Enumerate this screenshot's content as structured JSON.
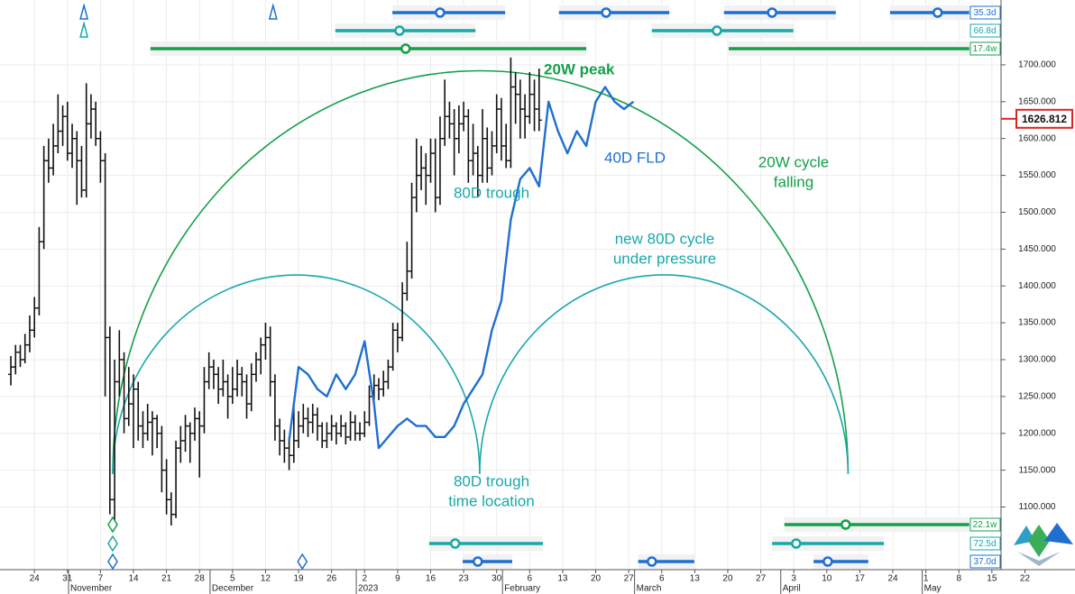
{
  "chart_data": {
    "type": "ohlc",
    "color": "#111111",
    "grid": true,
    "xlim": [
      -7.3,
      214.5
    ],
    "ylim": [
      1015,
      1788
    ],
    "yticks": [
      {
        "value": 1100,
        "label": "1100.000"
      },
      {
        "value": 1150,
        "label": "1150.000"
      },
      {
        "value": 1200,
        "label": "1200.000"
      },
      {
        "value": 1250,
        "label": "1250.000"
      },
      {
        "value": 1300,
        "label": "1300.000"
      },
      {
        "value": 1350,
        "label": "1350.000"
      },
      {
        "value": 1400,
        "label": "1400.000"
      },
      {
        "value": 1450,
        "label": "1450.000"
      },
      {
        "value": 1500,
        "label": "1500.000"
      },
      {
        "value": 1550,
        "label": "1550.000"
      },
      {
        "value": 1600,
        "label": "1600.000"
      },
      {
        "value": 1650,
        "label": "1650.000"
      },
      {
        "value": 1700,
        "label": "1700.000"
      }
    ],
    "xticks": [
      {
        "value": 0,
        "label": "24"
      },
      {
        "value": 7,
        "label": "31"
      },
      {
        "value": 14,
        "label": "7"
      },
      {
        "value": 21,
        "label": "14"
      },
      {
        "value": 28,
        "label": "21"
      },
      {
        "value": 35,
        "label": "28"
      },
      {
        "value": 42,
        "label": "5"
      },
      {
        "value": 49,
        "label": "12"
      },
      {
        "value": 56,
        "label": "19"
      },
      {
        "value": 63,
        "label": "26"
      },
      {
        "value": 70,
        "label": "2"
      },
      {
        "value": 77,
        "label": "9"
      },
      {
        "value": 84,
        "label": "16"
      },
      {
        "value": 91,
        "label": "23"
      },
      {
        "value": 98,
        "label": "30"
      },
      {
        "value": 105,
        "label": "6"
      },
      {
        "value": 112,
        "label": "13"
      },
      {
        "value": 119,
        "label": "20"
      },
      {
        "value": 126,
        "label": "27"
      },
      {
        "value": 133,
        "label": "6"
      },
      {
        "value": 140,
        "label": "13"
      },
      {
        "value": 147,
        "label": "20"
      },
      {
        "value": 154,
        "label": "27"
      },
      {
        "value": 161,
        "label": "3"
      },
      {
        "value": 168,
        "label": "10"
      },
      {
        "value": 175,
        "label": "17"
      },
      {
        "value": 182,
        "label": "24"
      },
      {
        "value": 189,
        "label": "1"
      },
      {
        "value": 196,
        "label": "8"
      },
      {
        "value": 203,
        "label": "15"
      },
      {
        "value": 210,
        "label": "22"
      }
    ],
    "months": [
      {
        "value": 8,
        "label": "November"
      },
      {
        "value": 38,
        "label": "December"
      },
      {
        "value": 69,
        "label": "2023"
      },
      {
        "value": 100,
        "label": "February"
      },
      {
        "value": 128,
        "label": "March"
      },
      {
        "value": 159,
        "label": "April"
      },
      {
        "value": 189,
        "label": "May"
      }
    ],
    "x": [
      -5,
      -4,
      -3,
      -2,
      -1,
      0,
      1,
      2,
      3,
      4,
      5,
      6,
      7,
      8,
      9,
      10,
      11,
      12,
      13,
      14,
      15,
      16,
      17,
      18,
      19,
      20,
      21,
      22,
      23,
      24,
      25,
      26,
      27,
      28,
      29,
      30,
      31,
      32,
      33,
      34,
      35,
      36,
      37,
      38,
      39,
      40,
      41,
      42,
      43,
      44,
      45,
      46,
      47,
      48,
      49,
      50,
      51,
      52,
      53,
      54,
      55,
      56,
      57,
      58,
      59,
      60,
      61,
      62,
      63,
      64,
      65,
      66,
      67,
      68,
      69,
      70,
      71,
      72,
      73,
      74,
      75,
      76,
      77,
      78,
      79,
      80,
      81,
      82,
      83,
      84,
      85,
      86,
      87,
      88,
      89,
      90,
      91,
      92,
      93,
      94,
      95,
      96,
      97,
      98,
      99,
      100,
      101,
      102,
      103,
      104,
      105,
      106,
      107
    ],
    "ohlc": [
      [
        1280,
        1305,
        1265,
        1290
      ],
      [
        1290,
        1320,
        1280,
        1310
      ],
      [
        1310,
        1320,
        1290,
        1300
      ],
      [
        1300,
        1335,
        1295,
        1320
      ],
      [
        1320,
        1360,
        1310,
        1340
      ],
      [
        1340,
        1385,
        1330,
        1370
      ],
      [
        1370,
        1480,
        1360,
        1460
      ],
      [
        1460,
        1590,
        1450,
        1570
      ],
      [
        1570,
        1600,
        1540,
        1560
      ],
      [
        1560,
        1620,
        1550,
        1590
      ],
      [
        1590,
        1660,
        1580,
        1610
      ],
      [
        1610,
        1645,
        1590,
        1630
      ],
      [
        1630,
        1650,
        1570,
        1580
      ],
      [
        1580,
        1620,
        1560,
        1600
      ],
      [
        1600,
        1610,
        1510,
        1570
      ],
      [
        1570,
        1590,
        1520,
        1530
      ],
      [
        1530,
        1675,
        1520,
        1620
      ],
      [
        1620,
        1660,
        1600,
        1640
      ],
      [
        1640,
        1650,
        1590,
        1600
      ],
      [
        1600,
        1610,
        1540,
        1570
      ],
      [
        1570,
        1580,
        1250,
        1330
      ],
      [
        1330,
        1345,
        1090,
        1110
      ],
      [
        1110,
        1300,
        1080,
        1270
      ],
      [
        1270,
        1340,
        1250,
        1300
      ],
      [
        1300,
        1310,
        1200,
        1220
      ],
      [
        1220,
        1290,
        1210,
        1240
      ],
      [
        1240,
        1280,
        1180,
        1260
      ],
      [
        1260,
        1270,
        1190,
        1210
      ],
      [
        1210,
        1230,
        1180,
        1200
      ],
      [
        1200,
        1240,
        1190,
        1215
      ],
      [
        1215,
        1230,
        1170,
        1220
      ],
      [
        1220,
        1225,
        1180,
        1200
      ],
      [
        1200,
        1210,
        1120,
        1150
      ],
      [
        1150,
        1165,
        1090,
        1110
      ],
      [
        1110,
        1120,
        1075,
        1090
      ],
      [
        1090,
        1190,
        1085,
        1180
      ],
      [
        1180,
        1210,
        1160,
        1190
      ],
      [
        1190,
        1225,
        1175,
        1210
      ],
      [
        1210,
        1215,
        1160,
        1200
      ],
      [
        1200,
        1235,
        1190,
        1220
      ],
      [
        1220,
        1230,
        1140,
        1210
      ],
      [
        1210,
        1290,
        1200,
        1270
      ],
      [
        1270,
        1310,
        1260,
        1290
      ],
      [
        1290,
        1300,
        1260,
        1280
      ],
      [
        1280,
        1290,
        1240,
        1260
      ],
      [
        1260,
        1300,
        1250,
        1270
      ],
      [
        1270,
        1280,
        1220,
        1250
      ],
      [
        1250,
        1290,
        1240,
        1260
      ],
      [
        1260,
        1300,
        1250,
        1280
      ],
      [
        1280,
        1290,
        1250,
        1270
      ],
      [
        1270,
        1280,
        1220,
        1240
      ],
      [
        1240,
        1295,
        1230,
        1280
      ],
      [
        1280,
        1310,
        1270,
        1300
      ],
      [
        1300,
        1330,
        1280,
        1320
      ],
      [
        1320,
        1350,
        1300,
        1330
      ],
      [
        1330,
        1345,
        1250,
        1270
      ],
      [
        1270,
        1280,
        1190,
        1210
      ],
      [
        1210,
        1220,
        1170,
        1190
      ],
      [
        1190,
        1205,
        1160,
        1180
      ],
      [
        1180,
        1195,
        1150,
        1170
      ],
      [
        1170,
        1240,
        1160,
        1190
      ],
      [
        1190,
        1230,
        1180,
        1210
      ],
      [
        1210,
        1240,
        1200,
        1220
      ],
      [
        1220,
        1235,
        1195,
        1215
      ],
      [
        1215,
        1240,
        1200,
        1225
      ],
      [
        1225,
        1235,
        1190,
        1210
      ],
      [
        1210,
        1215,
        1180,
        1190
      ],
      [
        1190,
        1215,
        1180,
        1200
      ],
      [
        1200,
        1225,
        1190,
        1210
      ],
      [
        1210,
        1215,
        1185,
        1200
      ],
      [
        1200,
        1225,
        1195,
        1210
      ],
      [
        1210,
        1215,
        1185,
        1195
      ],
      [
        1195,
        1230,
        1190,
        1215
      ],
      [
        1215,
        1225,
        1190,
        1200
      ],
      [
        1200,
        1215,
        1190,
        1200
      ],
      [
        1200,
        1230,
        1195,
        1215
      ],
      [
        1215,
        1265,
        1210,
        1250
      ],
      [
        1250,
        1280,
        1240,
        1265
      ],
      [
        1265,
        1275,
        1245,
        1260
      ],
      [
        1260,
        1285,
        1250,
        1270
      ],
      [
        1270,
        1300,
        1260,
        1290
      ],
      [
        1290,
        1350,
        1285,
        1340
      ],
      [
        1340,
        1350,
        1310,
        1330
      ],
      [
        1330,
        1405,
        1325,
        1390
      ],
      [
        1390,
        1460,
        1380,
        1420
      ],
      [
        1420,
        1540,
        1410,
        1520
      ],
      [
        1520,
        1600,
        1500,
        1550
      ],
      [
        1550,
        1590,
        1530,
        1560
      ],
      [
        1560,
        1580,
        1510,
        1550
      ],
      [
        1550,
        1600,
        1540,
        1580
      ],
      [
        1580,
        1600,
        1500,
        1520
      ],
      [
        1520,
        1630,
        1510,
        1600
      ],
      [
        1600,
        1680,
        1590,
        1630
      ],
      [
        1630,
        1650,
        1600,
        1620
      ],
      [
        1620,
        1640,
        1550,
        1600
      ],
      [
        1600,
        1645,
        1580,
        1620
      ],
      [
        1620,
        1650,
        1610,
        1630
      ],
      [
        1630,
        1640,
        1540,
        1570
      ],
      [
        1570,
        1620,
        1550,
        1580
      ],
      [
        1580,
        1590,
        1520,
        1550
      ],
      [
        1550,
        1640,
        1540,
        1600
      ],
      [
        1600,
        1615,
        1540,
        1560
      ],
      [
        1560,
        1610,
        1550,
        1590
      ],
      [
        1590,
        1660,
        1580,
        1640
      ],
      [
        1640,
        1655,
        1570,
        1590
      ],
      [
        1590,
        1620,
        1560,
        1570
      ],
      [
        1570,
        1710,
        1560,
        1670
      ],
      [
        1670,
        1690,
        1620,
        1660
      ],
      [
        1660,
        1680,
        1600,
        1640
      ],
      [
        1640,
        1660,
        1600,
        1630
      ],
      [
        1630,
        1690,
        1620,
        1660
      ],
      [
        1660,
        1680,
        1610,
        1640
      ],
      [
        1640,
        1695,
        1610,
        1625
      ]
    ],
    "last_price": 1626.812,
    "fld": {
      "color": "#1f6fd1",
      "x": [
        54,
        56,
        58,
        60,
        62,
        64,
        66,
        68,
        70,
        72,
        73,
        75,
        77,
        79,
        81,
        83,
        85,
        87,
        89,
        91,
        93,
        95,
        97,
        99,
        101,
        103,
        105,
        107,
        109,
        111,
        113,
        115,
        117,
        119,
        121,
        123,
        125,
        127
      ],
      "values": [
        1190,
        1290,
        1280,
        1260,
        1250,
        1280,
        1260,
        1280,
        1325,
        1240,
        1180,
        1195,
        1210,
        1220,
        1210,
        1210,
        1195,
        1195,
        1210,
        1240,
        1260,
        1280,
        1340,
        1380,
        1490,
        1545,
        1560,
        1535,
        1650,
        1610,
        1580,
        1610,
        1590,
        1650,
        1670,
        1650,
        1640,
        1650
      ]
    },
    "arcs": [
      {
        "color": "#14a04a",
        "start": 16.6,
        "end": 172.5,
        "base": 1145,
        "peak": 1692
      },
      {
        "color": "#19a8a8",
        "start": 16.6,
        "end": 94.4,
        "base": 1145,
        "peak": 1415
      },
      {
        "color": "#19a8a8",
        "start": 94.4,
        "end": 172.5,
        "base": 1145,
        "peak": 1415
      }
    ],
    "bands": [
      {
        "label": "35.3d",
        "color": "#1f6fd1",
        "position": "top",
        "segments": [
          [
            75.9,
            86,
            99.8
          ],
          [
            111.2,
            121.2,
            134.6
          ],
          [
            146.2,
            156.4,
            169.9
          ],
          [
            181.4,
            191.5,
            198.2
          ]
        ],
        "markers": [
          10.5,
          50.6
        ]
      },
      {
        "label": "66.8d",
        "color": "#19a8a8",
        "position": "top",
        "segments": [
          [
            63.8,
            77.4,
            93.5
          ],
          [
            130.9,
            144.7,
            160.9
          ]
        ],
        "markers": [
          10.5
        ]
      },
      {
        "label": "17.4w",
        "color": "#14a04a",
        "position": "top",
        "segments": [
          [
            24.6,
            78.7,
            117
          ],
          [
            147.2,
            null,
            198.2
          ]
        ],
        "markers": []
      },
      {
        "label": "22.1w",
        "color": "#14a04a",
        "position": "bottom",
        "segments": [
          [
            159,
            172,
            198.2
          ]
        ],
        "markers": [
          16.6
        ]
      },
      {
        "label": "72.5d",
        "color": "#19a8a8",
        "position": "bottom",
        "segments": [
          [
            83.7,
            89.2,
            107.8
          ],
          [
            156.4,
            161.5,
            180.1
          ]
        ],
        "markers": [
          16.6
        ]
      },
      {
        "label": "37.0d",
        "color": "#1f6fd1",
        "position": "bottom",
        "segments": [
          [
            90.8,
            94,
            101.3
          ],
          [
            128,
            130.9,
            139.9
          ],
          [
            165.2,
            168.2,
            176.8
          ]
        ],
        "markers": [
          16.6,
          56.8
        ]
      }
    ],
    "annotations": [
      {
        "text": "20W peak",
        "color": "#14a04a"
      },
      {
        "text": "40D FLD",
        "color": "#1f6fd1"
      },
      {
        "text": "80D trough",
        "color": "#19a8a8"
      },
      {
        "text": "20W cycle",
        "color": "#14a04a"
      },
      {
        "text": "falling",
        "color": "#14a04a"
      },
      {
        "text": "new 80D cycle",
        "color": "#19a8a8"
      },
      {
        "text": "under pressure",
        "color": "#19a8a8"
      },
      {
        "text": "80D trough",
        "color": "#19a8a8"
      },
      {
        "text": "time location",
        "color": "#19a8a8"
      }
    ]
  }
}
